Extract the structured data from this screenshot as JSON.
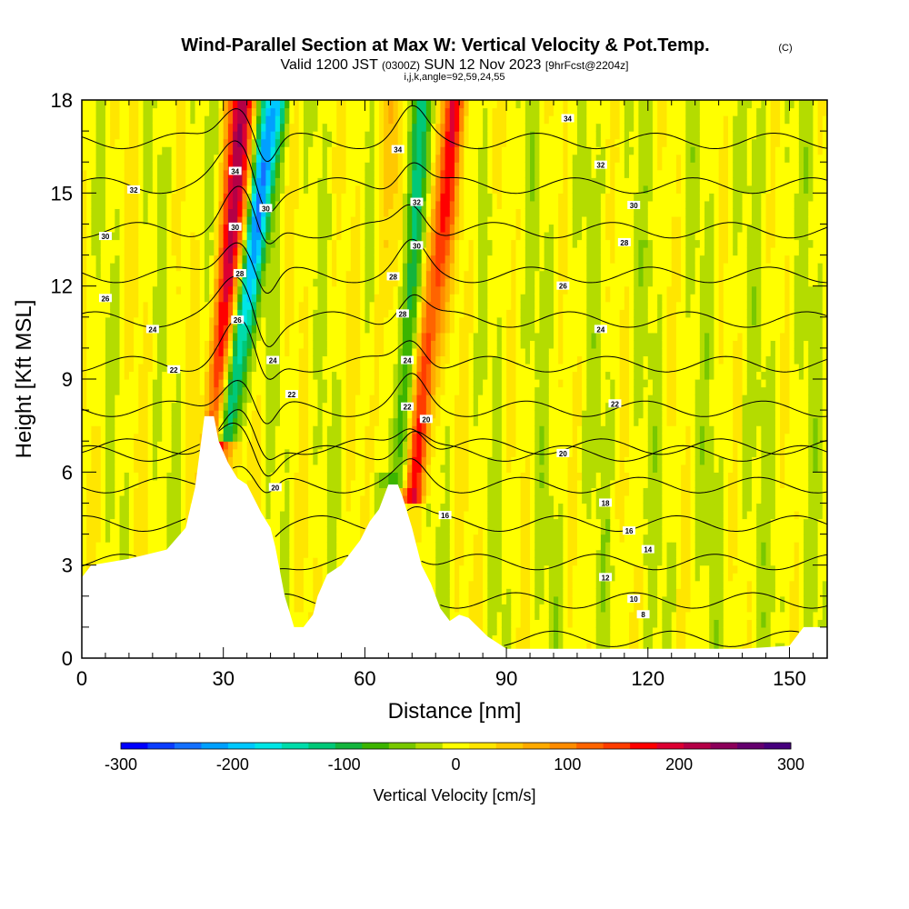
{
  "chart_data": {
    "type": "heatmap",
    "title": "Wind-Parallel Section at Max W: Vertical Velocity & Pot.Temp.",
    "title_mark": "(C)",
    "subtitle": {
      "valid": "Valid 1200 JST",
      "utc": "(0300Z)",
      "date": "SUN 12 Nov 2023",
      "fcst": "[9hrFcst@2204z]"
    },
    "params_line": "i,j,k,angle=92,59,24,55",
    "xlabel": "Distance [nm]",
    "ylabel": "Height [Kft MSL]",
    "xlim": [
      0,
      158
    ],
    "ylim": [
      0,
      18
    ],
    "x_ticks": [
      "0",
      "30",
      "60",
      "90",
      "120",
      "150"
    ],
    "y_ticks": [
      "0",
      "3",
      "6",
      "9",
      "12",
      "15",
      "18"
    ],
    "colorbar": {
      "label": "Vertical Velocity [cm/s]",
      "range": [
        -300,
        300
      ],
      "tick_labels": [
        "-300",
        "-200",
        "-100",
        "0",
        "100",
        "200",
        "300"
      ],
      "colors": [
        "#0000ff",
        "#0a3cff",
        "#1470ff",
        "#00a0ff",
        "#00c8ff",
        "#00e6e6",
        "#00dcaa",
        "#00c878",
        "#14b43c",
        "#3cb400",
        "#78c800",
        "#b4dc00",
        "#ffff00",
        "#ffe600",
        "#ffc800",
        "#ffaa00",
        "#ff8c00",
        "#ff6400",
        "#ff3c00",
        "#ff0000",
        "#dc0032",
        "#b40046",
        "#8c005a",
        "#64006e",
        "#46007d"
      ]
    },
    "terrain": [
      [
        0,
        2.6
      ],
      [
        2,
        3.0
      ],
      [
        10,
        3.2
      ],
      [
        18,
        3.5
      ],
      [
        22,
        4.2
      ],
      [
        24,
        5.5
      ],
      [
        26,
        7.8
      ],
      [
        28,
        7.8
      ],
      [
        29,
        7.0
      ],
      [
        31,
        6.3
      ],
      [
        33,
        5.8
      ],
      [
        35,
        5.6
      ],
      [
        37,
        5.0
      ],
      [
        38,
        4.7
      ],
      [
        40,
        4.2
      ],
      [
        41,
        3.6
      ],
      [
        42,
        2.8
      ],
      [
        43,
        2.0
      ],
      [
        44,
        1.5
      ],
      [
        45,
        1.0
      ],
      [
        47,
        1.0
      ],
      [
        49,
        1.4
      ],
      [
        50,
        2.0
      ],
      [
        52,
        2.7
      ],
      [
        55,
        3.0
      ],
      [
        57,
        3.4
      ],
      [
        59,
        3.8
      ],
      [
        61,
        4.4
      ],
      [
        63,
        4.8
      ],
      [
        65,
        5.6
      ],
      [
        67,
        5.6
      ],
      [
        68,
        5.2
      ],
      [
        69,
        4.7
      ],
      [
        70,
        4.2
      ],
      [
        71,
        3.6
      ],
      [
        72,
        3.0
      ],
      [
        74,
        2.4
      ],
      [
        76,
        1.6
      ],
      [
        78,
        1.2
      ],
      [
        80,
        1.4
      ],
      [
        82,
        1.3
      ],
      [
        84,
        1.0
      ],
      [
        86,
        0.7
      ],
      [
        88,
        0.5
      ],
      [
        90,
        0.3
      ],
      [
        100,
        0.3
      ],
      [
        110,
        0.3
      ],
      [
        120,
        0.3
      ],
      [
        130,
        0.3
      ],
      [
        140,
        0.3
      ],
      [
        150,
        0.4
      ],
      [
        153,
        1.0
      ],
      [
        158,
        1.0
      ]
    ],
    "updraft_bands": [
      {
        "x_top": 34,
        "x_bottom": 28,
        "y_from": 5.5,
        "value": 220
      },
      {
        "x_top": 79,
        "x_bottom": 70,
        "y_from": 5.0,
        "value": 160
      },
      {
        "x_top": 66,
        "x_bottom": 64,
        "y_from": 6.0,
        "value": 40
      }
    ],
    "downdraft_bands": [
      {
        "x_top": 41,
        "x_bottom": 30,
        "y_from": 7.0,
        "value": -220
      },
      {
        "x_top": 72,
        "x_bottom": 67,
        "y_from": 5.5,
        "value": -100
      }
    ],
    "theta_contours": [
      8,
      10,
      12,
      14,
      16,
      18,
      20,
      22,
      24,
      26,
      28,
      30,
      32,
      34
    ],
    "contour_labels": [
      {
        "text": "34",
        "x": 103,
        "y": 17.4
      },
      {
        "text": "34",
        "x": 67,
        "y": 16.4
      },
      {
        "text": "34",
        "x": 32.5,
        "y": 15.7
      },
      {
        "text": "32",
        "x": 110,
        "y": 15.9
      },
      {
        "text": "32",
        "x": 11,
        "y": 15.1
      },
      {
        "text": "32",
        "x": 71,
        "y": 14.7
      },
      {
        "text": "30",
        "x": 39,
        "y": 14.5
      },
      {
        "text": "30",
        "x": 117,
        "y": 14.6
      },
      {
        "text": "30",
        "x": 5,
        "y": 13.6
      },
      {
        "text": "30",
        "x": 71,
        "y": 13.3
      },
      {
        "text": "30",
        "x": 32.5,
        "y": 13.9
      },
      {
        "text": "28",
        "x": 115,
        "y": 13.4
      },
      {
        "text": "28",
        "x": 33.5,
        "y": 12.4
      },
      {
        "text": "28",
        "x": 66,
        "y": 12.3
      },
      {
        "text": "28",
        "x": 68,
        "y": 11.1
      },
      {
        "text": "26",
        "x": 102,
        "y": 12.0
      },
      {
        "text": "26",
        "x": 5,
        "y": 11.6
      },
      {
        "text": "26",
        "x": 33,
        "y": 10.9
      },
      {
        "text": "24",
        "x": 15,
        "y": 10.6
      },
      {
        "text": "24",
        "x": 110,
        "y": 10.6
      },
      {
        "text": "24",
        "x": 40.5,
        "y": 9.6
      },
      {
        "text": "24",
        "x": 69,
        "y": 9.6
      },
      {
        "text": "22",
        "x": 19.5,
        "y": 9.3
      },
      {
        "text": "22",
        "x": 44.5,
        "y": 8.5
      },
      {
        "text": "22",
        "x": 69,
        "y": 8.1
      },
      {
        "text": "22",
        "x": 113,
        "y": 8.2
      },
      {
        "text": "20",
        "x": 73,
        "y": 7.7
      },
      {
        "text": "20",
        "x": 102,
        "y": 6.6
      },
      {
        "text": "20",
        "x": 41,
        "y": 5.5
      },
      {
        "text": "18",
        "x": 111,
        "y": 5.0
      },
      {
        "text": "16",
        "x": 77,
        "y": 4.6
      },
      {
        "text": "16",
        "x": 116,
        "y": 4.1
      },
      {
        "text": "14",
        "x": 120,
        "y": 3.5
      },
      {
        "text": "12",
        "x": 111,
        "y": 2.6
      },
      {
        "text": "10",
        "x": 117,
        "y": 1.9
      },
      {
        "text": "8",
        "x": 119,
        "y": 1.4
      }
    ]
  }
}
